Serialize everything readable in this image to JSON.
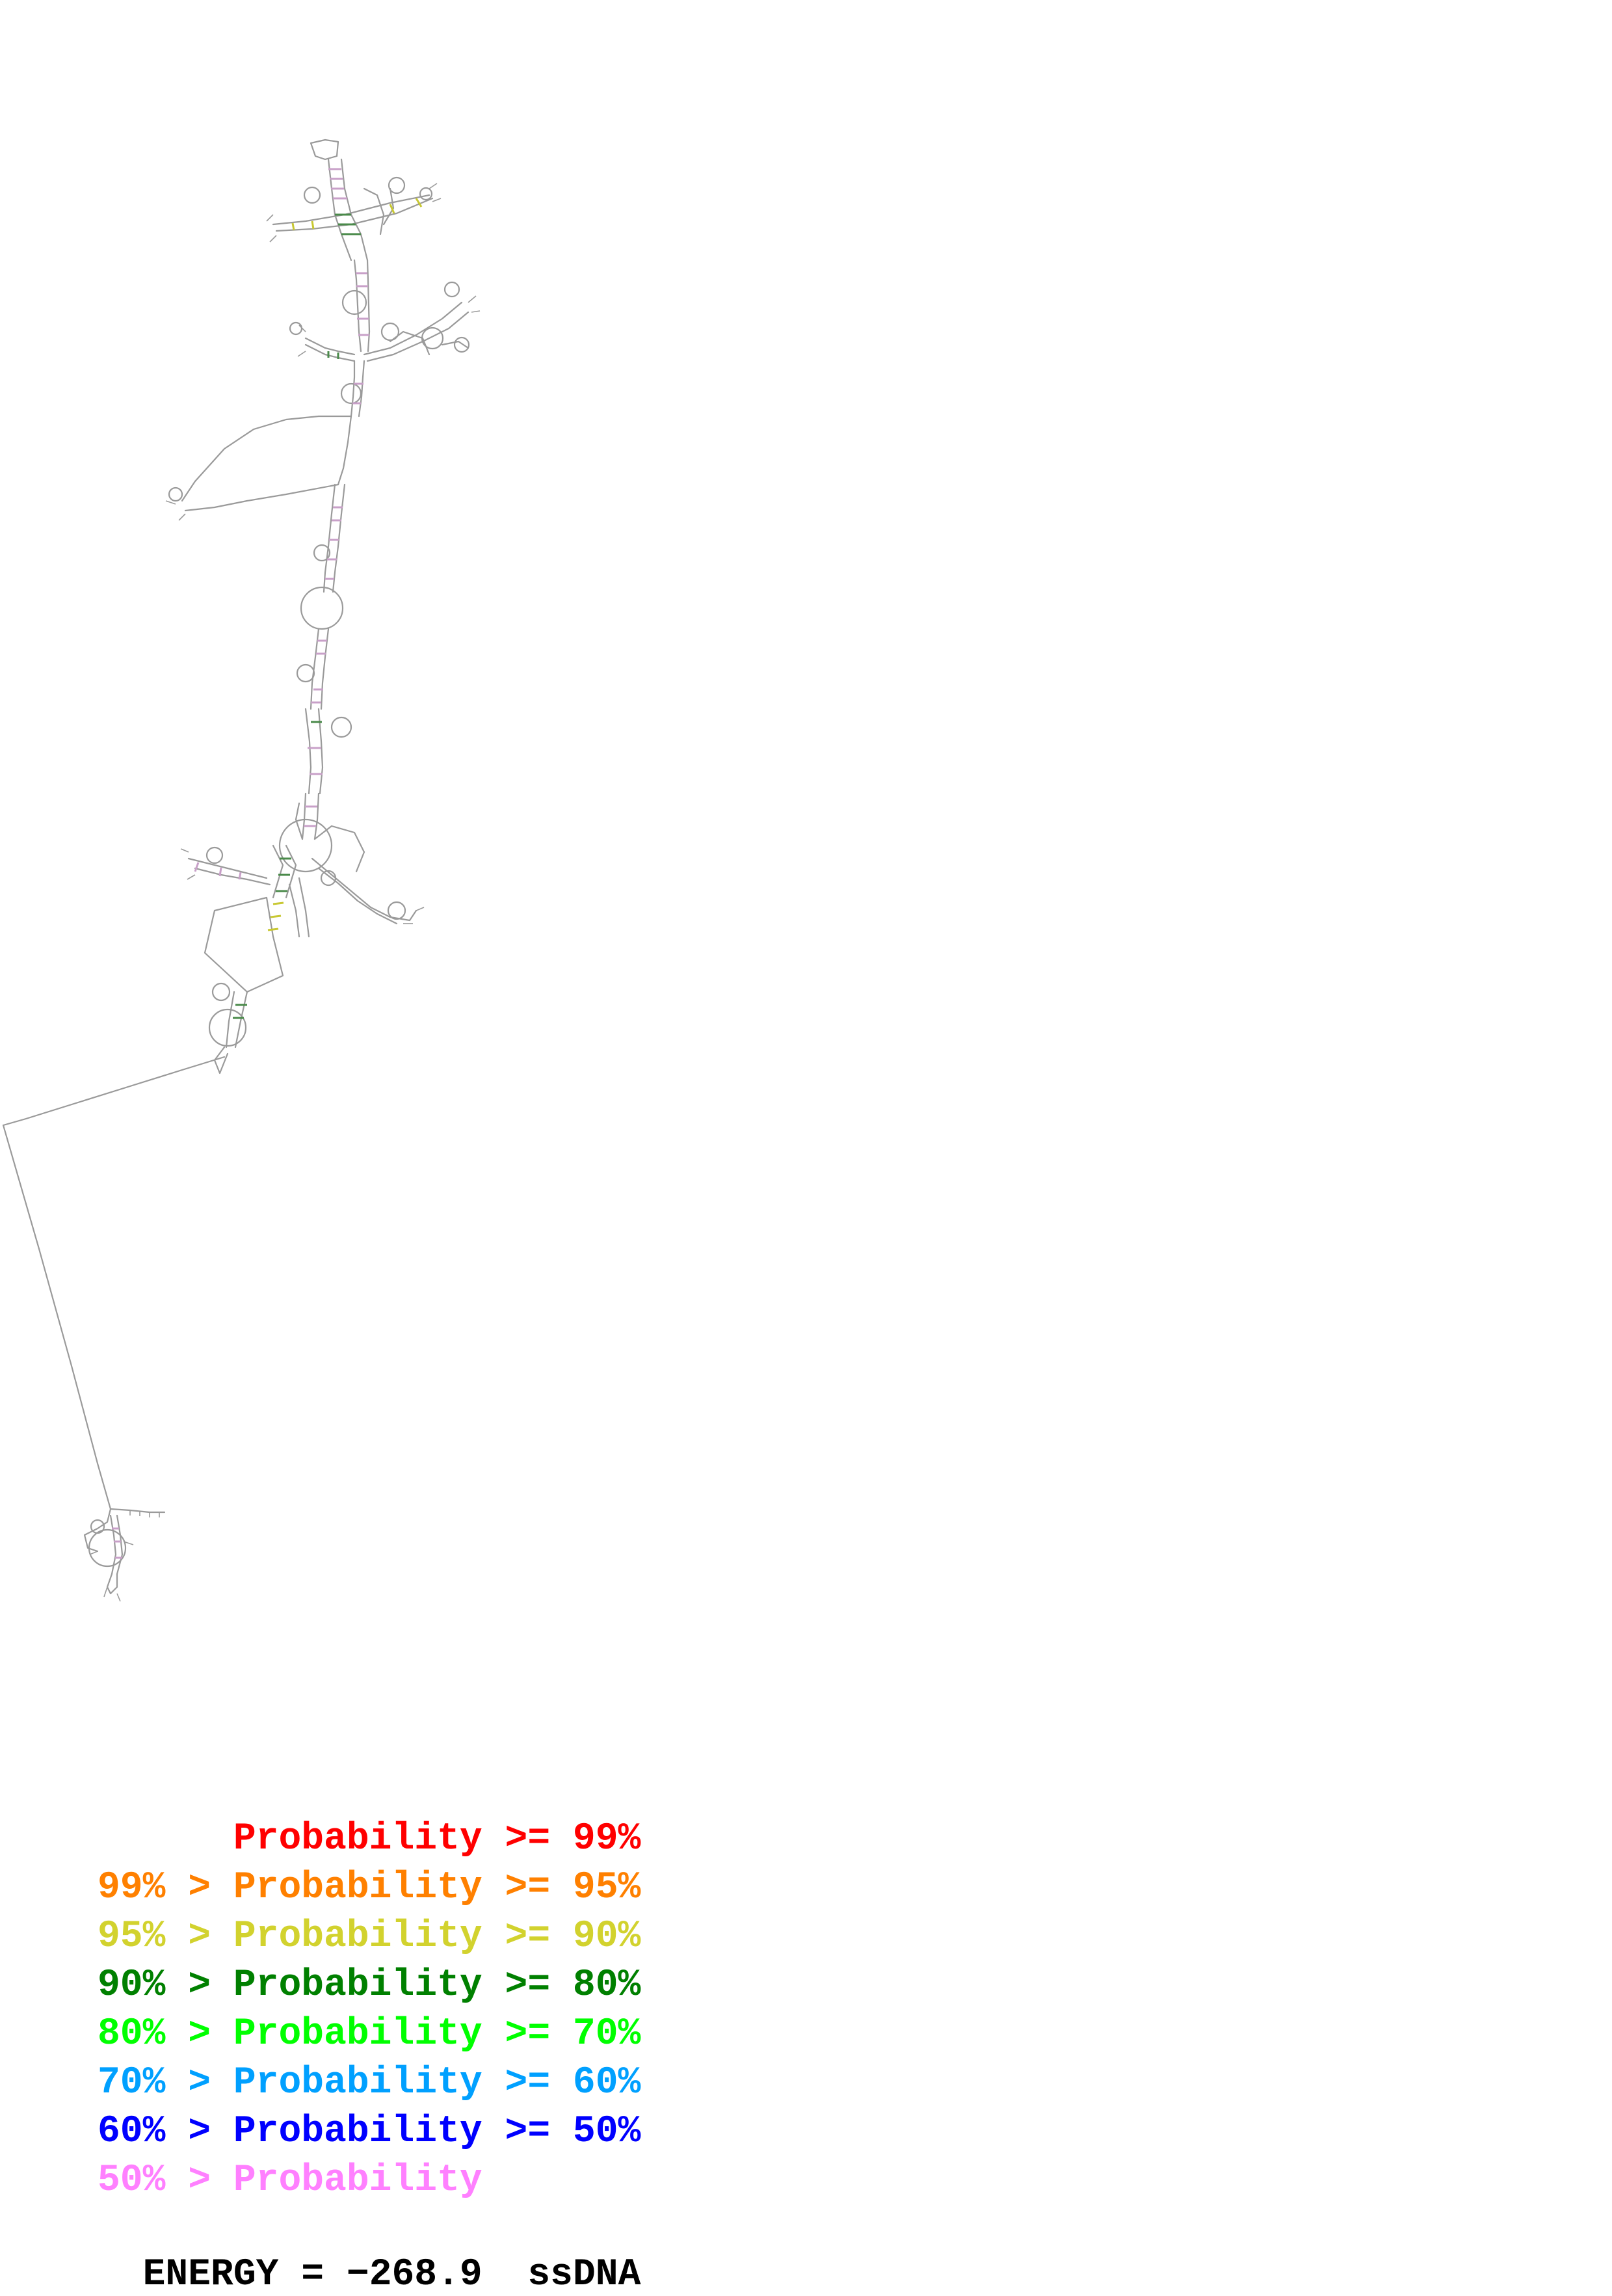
{
  "legend": [
    {
      "prefix": "",
      "label": "Probability",
      "suffix": ">= 99%",
      "color": "#ff0000"
    },
    {
      "prefix": "99% >",
      "label": "Probability",
      "suffix": ">= 95%",
      "color": "#ff8000"
    },
    {
      "prefix": "95% >",
      "label": "Probability",
      "suffix": ">= 90%",
      "color": "#d2d22e"
    },
    {
      "prefix": "90% >",
      "label": "Probability",
      "suffix": ">= 80%",
      "color": "#008000"
    },
    {
      "prefix": "80% >",
      "label": "Probability",
      "suffix": ">= 70%",
      "color": "#00ff00"
    },
    {
      "prefix": "70% >",
      "label": "Probability",
      "suffix": ">= 60%",
      "color": "#00a0ff"
    },
    {
      "prefix": "60% >",
      "label": "Probability",
      "suffix": ">= 50%",
      "color": "#0000ff"
    },
    {
      "prefix": "50% >",
      "label": "Probability",
      "suffix": "",
      "color": "#ff80ff"
    }
  ],
  "energy": {
    "label": "ENERGY =",
    "value": "−268.9",
    "molecule": "ssDNA"
  },
  "colors": {
    "backbone": "#9a9a9a",
    "pair_stem": "#c8a0c8",
    "pair_green": "#4a8a4a",
    "pair_yellow": "#c8c832"
  }
}
